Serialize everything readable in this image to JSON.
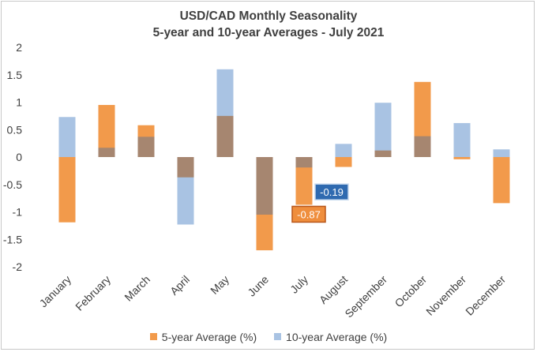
{
  "chart_data": {
    "type": "bar",
    "title_line1": "USD/CAD Monthly  Seasonality",
    "title_line2": "5-year  and  10-year  Averages  - July  2021",
    "categories": [
      "January",
      "February",
      "March",
      "April",
      "May",
      "June",
      "July",
      "August",
      "September",
      "October",
      "November",
      "December"
    ],
    "series": [
      {
        "name": "5-year Average (%)",
        "color": "#f29a4b",
        "values": [
          -1.19,
          0.95,
          0.58,
          -0.37,
          0.75,
          -1.7,
          -0.87,
          -0.18,
          0.12,
          1.37,
          -0.04,
          -0.84
        ]
      },
      {
        "name": "10-year Average (%)",
        "color": "#a9c3e3",
        "values": [
          0.73,
          0.17,
          0.37,
          -1.23,
          1.6,
          -1.05,
          -0.19,
          0.24,
          0.99,
          0.38,
          0.62,
          0.14
        ]
      }
    ],
    "overlap_color": "#a68670",
    "y_ticks": [
      "2",
      "1.5",
      "1",
      "0.5",
      "0",
      "-0.5",
      "-1",
      "-1.5",
      "-2"
    ],
    "ylim": [
      -2,
      2
    ],
    "annotations": [
      {
        "text": "-0.87",
        "category": "July",
        "series": "5-year Average (%)",
        "bg": "#ef8e3d",
        "border": "#b8561a"
      },
      {
        "text": "-0.19",
        "category": "July",
        "series": "10-year Average (%)",
        "bg": "#2f6ab0",
        "border": "#c5d8ee"
      }
    ],
    "legend_position": "bottom",
    "grid": false
  }
}
